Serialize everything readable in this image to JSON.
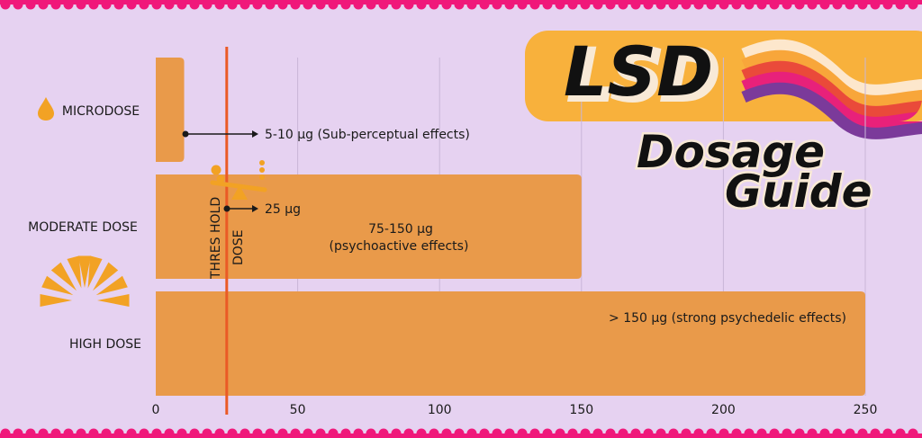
{
  "title": {
    "main": "LSD",
    "line2": "Dosage",
    "line3": "Guide"
  },
  "chart_data": {
    "type": "bar",
    "orientation": "horizontal",
    "categories": [
      "MICRODOSE",
      "MODERATE DOSE",
      "HIGH DOSE"
    ],
    "values": [
      10,
      150,
      250
    ],
    "annotations": [
      {
        "text": "5-10 µg (Sub-perceptual effects)",
        "x": 10
      },
      {
        "text": "25 µg",
        "x": 25
      },
      {
        "text": "75-150 µg",
        "x": 150
      },
      {
        "text": "(psychoactive effects)",
        "x": 150
      },
      {
        "text": "> 150 µg (strong psychedelic effects)",
        "x": 250
      }
    ],
    "threshold": {
      "value": 25,
      "label_line1": "THRES HOLD",
      "label_line2": "DOSE"
    },
    "xticks": [
      "0",
      "50",
      "100",
      "150",
      "200",
      "250"
    ],
    "xlim": [
      0,
      250
    ],
    "grid": "vertical",
    "xlabel": "",
    "ylabel": ""
  },
  "colors": {
    "background": "#e6d2f1",
    "bar": "#e99a4a",
    "threshold": "#ea5a26",
    "border": "#f0187a",
    "banner": "#f8b13c",
    "grid": "#c9b6d8",
    "text": "#1a1a1a",
    "icon": "#f2a224",
    "stripes": [
      "#fde7cc",
      "#f8a63a",
      "#ea4a3a",
      "#e8217a",
      "#7b3a9a"
    ]
  },
  "icons": [
    "droplet-icon",
    "seesaw-icon",
    "sunburst-icon"
  ]
}
